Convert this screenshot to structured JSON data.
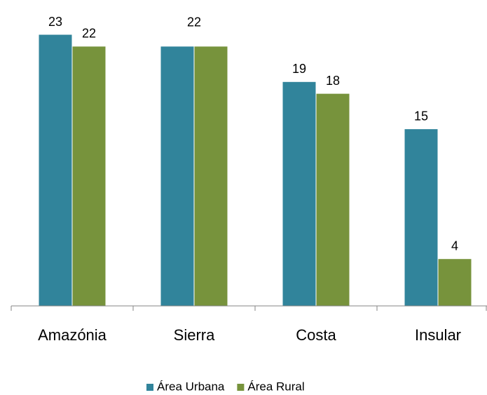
{
  "chart_data": {
    "type": "bar",
    "categories": [
      "Amazónia",
      "Sierra",
      "Costa",
      "Insular"
    ],
    "series": [
      {
        "name": "Área Urbana",
        "color": "#31849b",
        "values": [
          23,
          22,
          19,
          15
        ]
      },
      {
        "name": "Área Rural",
        "color": "#77933c",
        "values": [
          22,
          22,
          18,
          4
        ]
      }
    ],
    "ylim": [
      0,
      23
    ],
    "legend": "bottom"
  }
}
